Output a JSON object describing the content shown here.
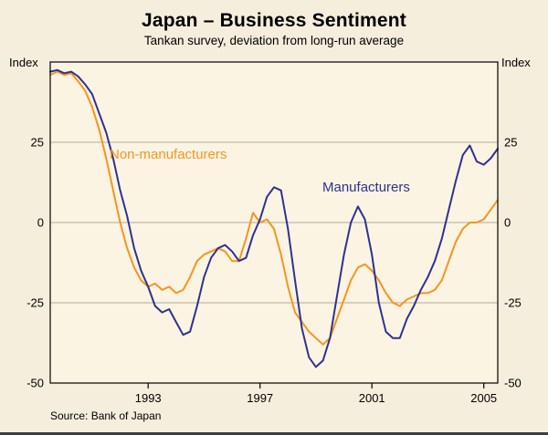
{
  "header": {
    "title": "Japan – Business Sentiment",
    "subtitle": "Tankan survey, deviation from long-run average"
  },
  "axis_units": {
    "left": "Index",
    "right": "Index"
  },
  "footer": {
    "source": "Source: Bank of Japan"
  },
  "chart_data": {
    "type": "line",
    "title": "Japan – Business Sentiment",
    "subtitle": "Tankan survey, deviation from long-run average",
    "ylabel_left": "Index",
    "ylabel_right": "Index",
    "source": "Source: Bank of Japan",
    "xlim": [
      1989.5,
      2005.5
    ],
    "ylim": [
      -50,
      50
    ],
    "yticks": [
      25,
      0,
      -25,
      -50
    ],
    "grid_y": [
      25,
      0,
      -25
    ],
    "xticks": [
      1993,
      1997,
      2001,
      2005
    ],
    "legend": "inline-labels",
    "x": [
      1989.5,
      1989.75,
      1990.0,
      1990.25,
      1990.5,
      1990.75,
      1991.0,
      1991.25,
      1991.5,
      1991.75,
      1992.0,
      1992.25,
      1992.5,
      1992.75,
      1993.0,
      1993.25,
      1993.5,
      1993.75,
      1994.0,
      1994.25,
      1994.5,
      1994.75,
      1995.0,
      1995.25,
      1995.5,
      1995.75,
      1996.0,
      1996.25,
      1996.5,
      1996.75,
      1997.0,
      1997.25,
      1997.5,
      1997.75,
      1998.0,
      1998.25,
      1998.5,
      1998.75,
      1999.0,
      1999.25,
      1999.5,
      1999.75,
      2000.0,
      2000.25,
      2000.5,
      2000.75,
      2001.0,
      2001.25,
      2001.5,
      2001.75,
      2002.0,
      2002.25,
      2002.5,
      2002.75,
      2003.0,
      2003.25,
      2003.5,
      2003.75,
      2004.0,
      2004.25,
      2004.5,
      2004.75,
      2005.0,
      2005.25,
      2005.5
    ],
    "series": [
      {
        "name": "Non-manufacturers",
        "color": "#f7941e",
        "values": [
          46,
          47,
          46,
          46.5,
          44,
          41,
          36,
          29,
          20,
          10,
          0,
          -8,
          -14,
          -18,
          -20,
          -19,
          -21,
          -20,
          -22,
          -21,
          -17,
          -12,
          -10,
          -9,
          -8,
          -9,
          -12,
          -12,
          -5,
          3,
          0,
          1,
          -2,
          -10,
          -20,
          -28,
          -31,
          -34,
          -36,
          -38,
          -36,
          -30,
          -24,
          -18,
          -14,
          -13,
          -15,
          -18,
          -22,
          -25,
          -26,
          -24,
          -23,
          -22,
          -22,
          -21,
          -18,
          -12,
          -6,
          -2,
          0,
          0,
          1,
          4,
          7
        ]
      },
      {
        "name": "Manufacturers",
        "color": "#2e3192",
        "values": [
          47,
          47.5,
          46.5,
          47,
          45.5,
          43,
          40,
          34,
          28,
          20,
          10,
          2,
          -8,
          -15,
          -20,
          -26,
          -28,
          -27,
          -31,
          -35,
          -34,
          -26,
          -17,
          -11,
          -8,
          -7,
          -9,
          -12,
          -11,
          -4,
          1,
          8,
          11,
          10,
          -2,
          -18,
          -33,
          -42,
          -45,
          -43,
          -36,
          -23,
          -10,
          0,
          5,
          1,
          -10,
          -25,
          -34,
          -36,
          -36,
          -30,
          -26,
          -21,
          -17,
          -12,
          -5,
          4,
          13,
          21,
          24,
          19,
          18,
          20,
          23
        ]
      }
    ],
    "colors": {
      "canvas_bg": "#f6eedc",
      "plot_bg": "#fbf4e3",
      "grid": "#b3ab99",
      "frame": "#000000"
    }
  }
}
